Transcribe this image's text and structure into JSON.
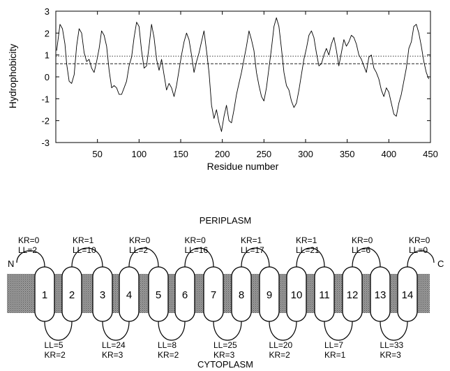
{
  "chart_data": {
    "type": "line",
    "ylabel": "Hydrophobicity",
    "xlabel": "Residue number",
    "xlim": [
      0,
      450
    ],
    "ylim": [
      -3,
      3
    ],
    "xticks": [
      50,
      100,
      150,
      200,
      250,
      300,
      350,
      400,
      450
    ],
    "yticks": [
      -3,
      -2,
      -1,
      0,
      1,
      2,
      3
    ],
    "grid": false,
    "reference_lines": [
      0.95,
      0.6
    ],
    "series": [
      {
        "x": [
          1,
          5,
          8,
          11,
          13,
          16,
          19,
          22,
          25,
          28,
          31,
          34,
          37,
          40,
          43,
          46,
          49,
          52,
          55,
          58,
          61,
          64,
          67,
          70,
          73,
          76,
          79,
          82,
          85,
          88,
          91,
          94,
          97,
          100,
          103,
          106,
          109,
          112,
          115,
          118,
          121,
          124,
          127,
          130,
          133,
          136,
          139,
          142,
          145,
          148,
          151,
          154,
          157,
          160,
          163,
          166,
          169,
          172,
          175,
          178,
          181,
          184,
          187,
          190,
          193,
          196,
          199,
          202,
          205,
          208,
          211,
          214,
          217,
          220,
          223,
          226,
          229,
          232,
          235,
          238,
          241,
          244,
          247,
          250,
          253,
          256,
          259,
          262,
          265,
          268,
          271,
          274,
          277,
          280,
          283,
          286,
          289,
          292,
          295,
          298,
          301,
          304,
          307,
          310,
          313,
          316,
          319,
          322,
          325,
          328,
          331,
          334,
          337,
          340,
          343,
          346,
          349,
          352,
          355,
          358,
          361,
          364,
          367,
          370,
          373,
          376,
          379,
          382,
          385,
          388,
          391,
          394,
          397,
          400,
          403,
          406,
          409,
          412,
          415,
          418,
          421,
          424,
          427,
          430,
          433,
          436,
          439,
          442,
          445,
          448
        ],
        "y": [
          1.2,
          2.4,
          2.2,
          1.5,
          0.6,
          -0.2,
          -0.3,
          0.1,
          1.4,
          2.2,
          2.0,
          1.1,
          0.7,
          0.8,
          0.4,
          0.2,
          0.7,
          1.3,
          2.1,
          1.9,
          1.4,
          0.3,
          -0.5,
          -0.4,
          -0.5,
          -0.8,
          -0.8,
          -0.5,
          -0.2,
          0.5,
          0.9,
          1.8,
          2.5,
          2.3,
          1.2,
          0.4,
          0.5,
          1.4,
          2.4,
          1.8,
          0.8,
          0.3,
          0.8,
          0.1,
          -0.6,
          -0.3,
          -0.5,
          -0.9,
          -0.4,
          0.3,
          1.0,
          1.6,
          2.0,
          1.7,
          1.0,
          0.2,
          0.7,
          1.1,
          1.6,
          2.1,
          1.2,
          0.2,
          -1.3,
          -1.9,
          -1.5,
          -2.1,
          -2.5,
          -1.8,
          -1.3,
          -2.0,
          -2.1,
          -1.5,
          -0.8,
          -0.3,
          0.2,
          0.8,
          1.4,
          2.1,
          1.7,
          1.2,
          0.2,
          -0.4,
          -0.9,
          -1.1,
          -0.5,
          0.4,
          1.3,
          2.3,
          2.7,
          2.3,
          1.3,
          0.2,
          -0.4,
          -0.6,
          -1.1,
          -1.4,
          -1.2,
          -0.6,
          0.1,
          0.8,
          1.3,
          1.9,
          2.1,
          1.8,
          1.1,
          0.5,
          0.6,
          1.0,
          1.3,
          1.0,
          1.5,
          1.8,
          1.2,
          0.5,
          1.1,
          1.7,
          1.4,
          1.6,
          1.9,
          1.8,
          1.5,
          1.0,
          0.8,
          0.5,
          0.2,
          0.9,
          1.0,
          0.4,
          0.2,
          -0.1,
          -0.6,
          -0.9,
          -0.5,
          -0.7,
          -1.2,
          -1.7,
          -1.8,
          -1.2,
          -0.8,
          -0.2,
          0.4,
          1.3,
          1.6,
          2.3,
          2.4,
          2.0,
          1.4,
          0.7,
          0.2,
          -0.1
        ]
      }
    ]
  },
  "topology": {
    "periplasm_label": "PERIPLASM",
    "cytoplasm_label": "CYTOPLASM",
    "n_label": "N",
    "c_label": "C",
    "helices": [
      "1",
      "2",
      "3",
      "4",
      "5",
      "6",
      "7",
      "8",
      "9",
      "10",
      "11",
      "12",
      "13",
      "14"
    ],
    "periplasm_loops": [
      {
        "kr": "KR=0",
        "ll": "LL=2"
      },
      {
        "kr": "KR=1",
        "ll": "LL=10"
      },
      {
        "kr": "KR=0",
        "ll": "LL=2"
      },
      {
        "kr": "KR=0",
        "ll": "LL=16"
      },
      {
        "kr": "KR=1",
        "ll": "LL=17"
      },
      {
        "kr": "KR=1",
        "ll": "LL=21"
      },
      {
        "kr": "KR=0",
        "ll": "LL=6"
      },
      {
        "kr": "KR=0",
        "ll": "LL=0"
      }
    ],
    "cytoplasm_loops": [
      {
        "ll": "LL=5",
        "kr": "KR=2"
      },
      {
        "ll": "LL=24",
        "kr": "KR=3"
      },
      {
        "ll": "LL=8",
        "kr": "KR=2"
      },
      {
        "ll": "LL=25",
        "kr": "KR=3"
      },
      {
        "ll": "LL=20",
        "kr": "KR=2"
      },
      {
        "ll": "LL=7",
        "kr": "KR=1"
      },
      {
        "ll": "LL=33",
        "kr": "KR=3"
      }
    ]
  }
}
